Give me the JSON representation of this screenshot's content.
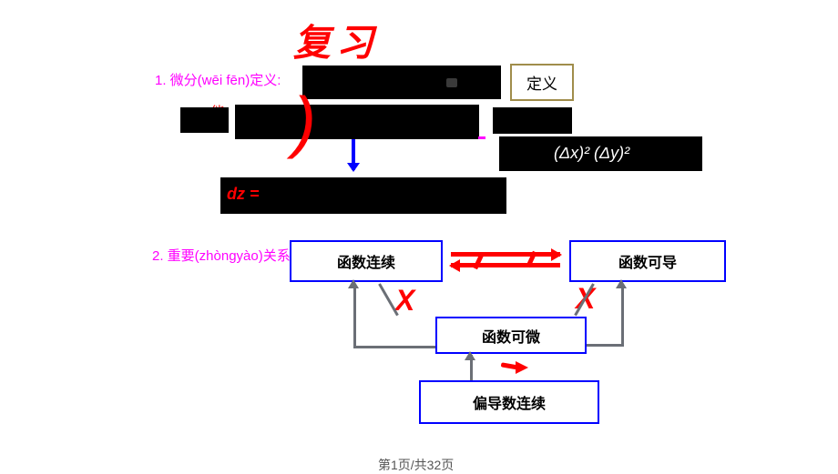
{
  "title": "复习",
  "section1": {
    "label": "1. 微分(wēi fēn)定义:",
    "def_button": "定义",
    "neng": "能",
    "dz": "dz =",
    "formula_white": "(Δx)²     (Δy)²"
  },
  "section2": {
    "label": "2. 重要(zhòngyào)关系:",
    "boxes": {
      "continuous": "函数连续",
      "derivable": "函数可导",
      "differentiable": "函数可微",
      "partial_continuous": "偏导数连续"
    },
    "x_marks": {
      "x1": "X",
      "x2": "X"
    }
  },
  "footer": {
    "page": "第1页/共32页"
  },
  "colors": {
    "title": "#ff0000",
    "label": "#ff00ff",
    "box_border": "#0000ff",
    "arrow_gray": "#6b6f76",
    "arrow_red": "#ff0000",
    "def_border": "#a08d4b"
  }
}
